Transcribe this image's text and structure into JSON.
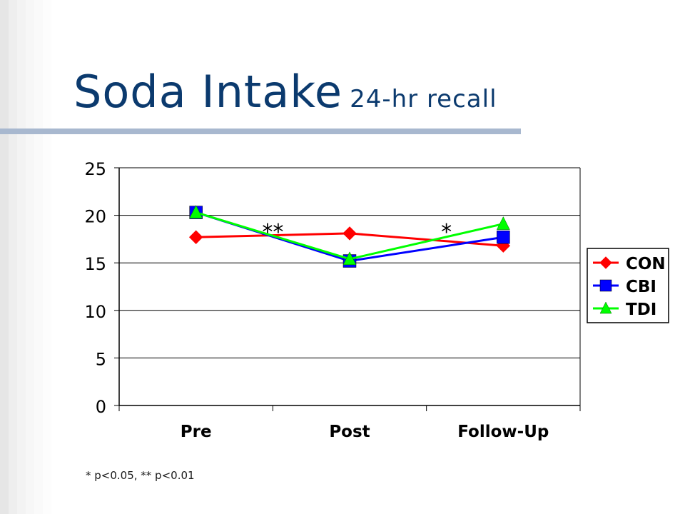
{
  "slide": {
    "title": "Soda Intake",
    "subtitle": "24-hr recall",
    "footnote": "* p<0.05, ** p<0.01"
  },
  "chart_data": {
    "type": "line",
    "categories": [
      "Pre",
      "Post",
      "Follow-Up"
    ],
    "series": [
      {
        "name": "CON",
        "values": [
          17.7,
          18.1,
          16.8
        ],
        "color": "#ff0000",
        "marker": "diamond"
      },
      {
        "name": "CBI",
        "values": [
          20.3,
          15.2,
          17.7
        ],
        "color": "#0000ff",
        "marker": "square"
      },
      {
        "name": "TDI",
        "values": [
          20.3,
          15.4,
          19.1
        ],
        "color": "#00ff00",
        "marker": "triangle"
      }
    ],
    "ylim": [
      0,
      25
    ],
    "yticks": [
      0,
      5,
      10,
      15,
      20,
      25
    ],
    "grid": true,
    "legend": "right",
    "annotations": [
      {
        "text": "**",
        "x": 0.5,
        "y": 19
      },
      {
        "text": "*",
        "x": 1.63,
        "y": 19
      }
    ]
  }
}
